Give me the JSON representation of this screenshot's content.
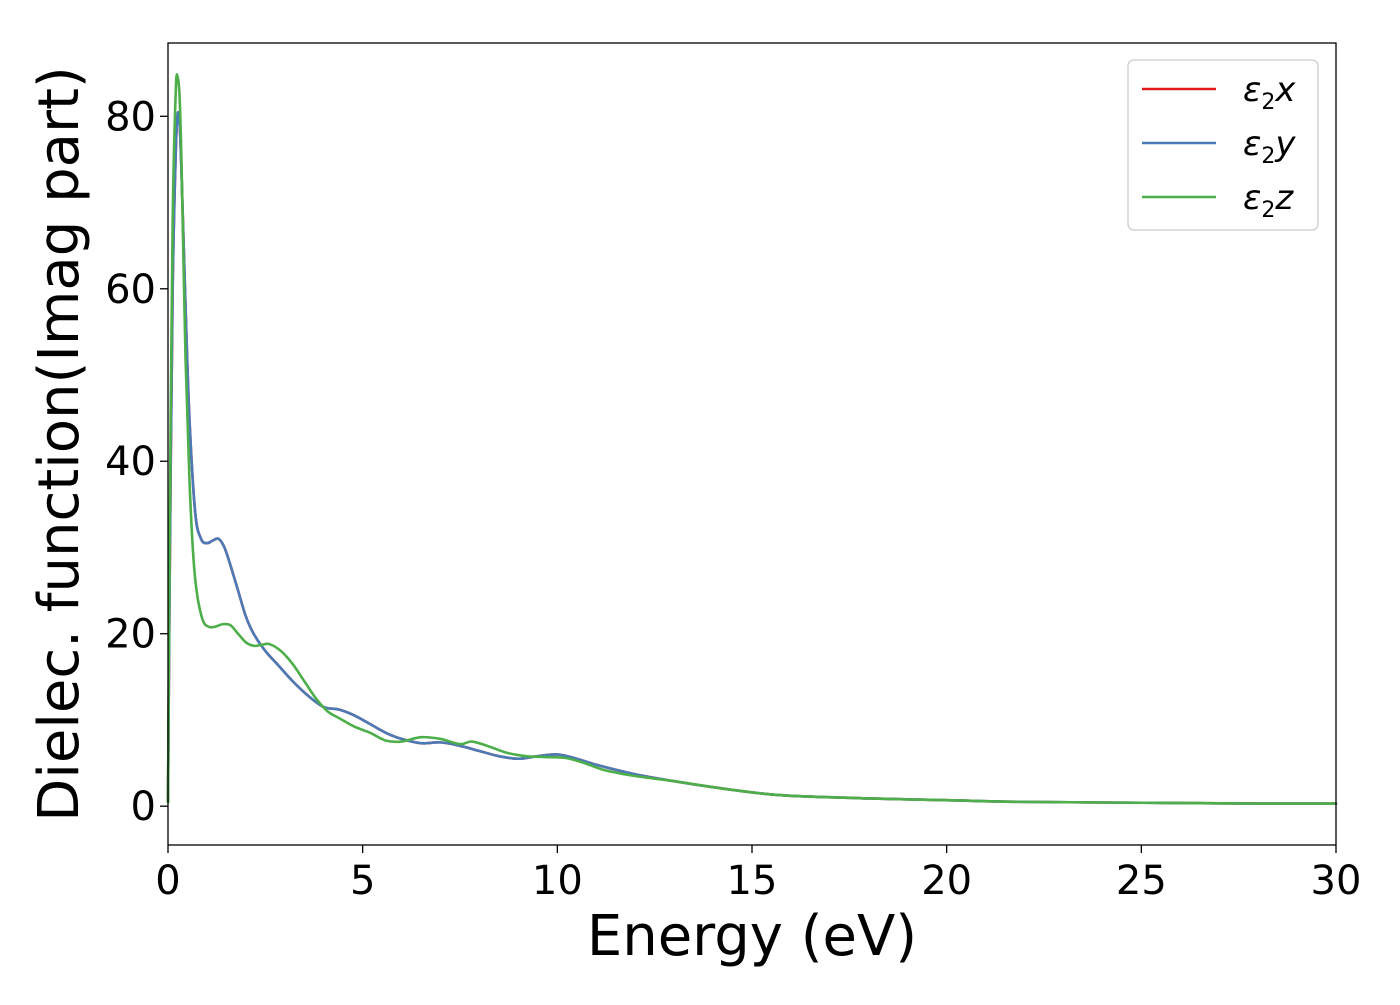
{
  "chart_data": {
    "type": "line",
    "title": "",
    "xlabel": "Energy (eV)",
    "ylabel": "Dielec. function(Imag part)",
    "xlim": [
      0,
      30
    ],
    "ylim": [
      -4.5,
      88.5
    ],
    "xticks": [
      0,
      5,
      10,
      15,
      20,
      25,
      30
    ],
    "xtick_labels": [
      "0",
      "5",
      "10",
      "15",
      "20",
      "25",
      "30"
    ],
    "yticks": [
      0,
      20,
      40,
      60,
      80
    ],
    "ytick_labels": [
      "0",
      "20",
      "40",
      "60",
      "80"
    ],
    "grid": false,
    "legend_position": "top-right",
    "series": [
      {
        "name": "ε2x",
        "legend": {
          "symbol": "ε",
          "sub": "2",
          "suffix": "x"
        },
        "color": "#e41a1c",
        "x": [
          0.0,
          0.05,
          0.12,
          0.2,
          0.25,
          0.3,
          0.35,
          0.45,
          0.55,
          0.7,
          0.85,
          1.0,
          1.15,
          1.3,
          1.45,
          1.6,
          1.8,
          2.0,
          2.2,
          2.5,
          2.8,
          3.2,
          3.6,
          4.0,
          4.4,
          4.8,
          5.2,
          5.6,
          6.0,
          6.5,
          7.0,
          7.5,
          8.0,
          8.5,
          9.0,
          9.5,
          10.0,
          10.5,
          11.0,
          12.0,
          13.0,
          14.0,
          15.0,
          16.0,
          18.0,
          20.0,
          22.0,
          25.0,
          28.0,
          30.0
        ],
        "values": [
          0.5,
          30,
          60,
          76,
          80.3,
          79,
          73,
          58,
          45,
          34,
          31,
          30.5,
          30.8,
          31,
          30,
          28,
          25,
          22,
          20,
          18,
          16.5,
          14.5,
          12.8,
          11.5,
          11.2,
          10.5,
          9.5,
          8.5,
          7.8,
          7.3,
          7.4,
          7.0,
          6.4,
          5.8,
          5.5,
          5.8,
          6.0,
          5.5,
          4.8,
          3.7,
          2.9,
          2.2,
          1.6,
          1.2,
          0.9,
          0.7,
          0.5,
          0.4,
          0.3,
          0.3
        ]
      },
      {
        "name": "ε2y",
        "legend": {
          "symbol": "ε",
          "sub": "2",
          "suffix": "y"
        },
        "color": "#4a7bb7",
        "x": [
          0.0,
          0.05,
          0.12,
          0.2,
          0.25,
          0.3,
          0.35,
          0.45,
          0.55,
          0.7,
          0.85,
          1.0,
          1.15,
          1.3,
          1.45,
          1.6,
          1.8,
          2.0,
          2.2,
          2.5,
          2.8,
          3.2,
          3.6,
          4.0,
          4.4,
          4.8,
          5.2,
          5.6,
          6.0,
          6.5,
          7.0,
          7.5,
          8.0,
          8.5,
          9.0,
          9.5,
          10.0,
          10.5,
          11.0,
          12.0,
          13.0,
          14.0,
          15.0,
          16.0,
          18.0,
          20.0,
          22.0,
          25.0,
          28.0,
          30.0
        ],
        "values": [
          0.5,
          30,
          60,
          76,
          80.3,
          79,
          73,
          58,
          45,
          34,
          31,
          30.5,
          30.8,
          31,
          30,
          28,
          25,
          22,
          20,
          18,
          16.5,
          14.5,
          12.8,
          11.5,
          11.2,
          10.5,
          9.5,
          8.5,
          7.8,
          7.3,
          7.4,
          7.0,
          6.4,
          5.8,
          5.5,
          5.8,
          6.0,
          5.5,
          4.8,
          3.7,
          2.9,
          2.2,
          1.6,
          1.2,
          0.9,
          0.7,
          0.5,
          0.4,
          0.3,
          0.3
        ]
      },
      {
        "name": "ε2z",
        "legend": {
          "symbol": "ε",
          "sub": "2",
          "suffix": "z"
        },
        "color": "#4daf4a",
        "x": [
          0.0,
          0.05,
          0.12,
          0.2,
          0.25,
          0.3,
          0.35,
          0.45,
          0.55,
          0.65,
          0.75,
          0.9,
          1.05,
          1.2,
          1.4,
          1.6,
          1.8,
          2.0,
          2.2,
          2.4,
          2.6,
          2.9,
          3.2,
          3.5,
          3.8,
          4.1,
          4.4,
          4.8,
          5.2,
          5.6,
          6.0,
          6.5,
          7.0,
          7.5,
          7.8,
          8.2,
          8.7,
          9.2,
          9.7,
          10.2,
          10.7,
          11.2,
          12.0,
          13.0,
          14.0,
          15.0,
          16.0,
          18.0,
          20.0,
          22.0,
          25.0,
          28.0,
          30.0
        ],
        "values": [
          0.5,
          35,
          68,
          83,
          84.5,
          82,
          74,
          52,
          38,
          29,
          24.5,
          21.5,
          20.8,
          20.8,
          21.1,
          21,
          20,
          19,
          18.6,
          18.7,
          18.8,
          18.0,
          16.5,
          14.5,
          12.5,
          11.0,
          10.2,
          9.2,
          8.5,
          7.6,
          7.5,
          8.0,
          7.8,
          7.2,
          7.5,
          7.0,
          6.2,
          5.8,
          5.7,
          5.6,
          5.0,
          4.2,
          3.5,
          2.9,
          2.2,
          1.6,
          1.2,
          0.9,
          0.7,
          0.5,
          0.4,
          0.3,
          0.3
        ]
      }
    ]
  }
}
